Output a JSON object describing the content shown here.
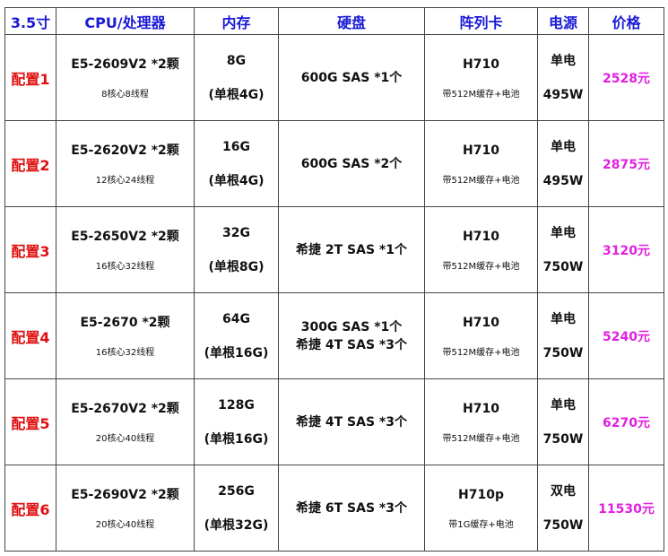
{
  "headers": [
    "3.5寸",
    "CPU/处理器",
    "内存",
    "硬盘",
    "阵列卡",
    "电源",
    "价格"
  ],
  "colors": {
    "header": "#1a1ad6",
    "config": "#e01010",
    "price": "#e020e0"
  },
  "rows": [
    {
      "config": "配置1",
      "cpu": "E5-2609V2 *2颗",
      "cores": "8核心8线程",
      "mem": "8G",
      "mem_detail": "(单根4G)",
      "disk": [
        "600G SAS *1个"
      ],
      "raid": "H710",
      "raid_detail": "带512M缓存+电池",
      "psu": "单电",
      "watt": "495W",
      "price": "2528元"
    },
    {
      "config": "配置2",
      "cpu": "E5-2620V2 *2颗",
      "cores": "12核心24线程",
      "mem": "16G",
      "mem_detail": "(单根4G)",
      "disk": [
        "600G SAS *2个"
      ],
      "raid": "H710",
      "raid_detail": "带512M缓存+电池",
      "psu": "单电",
      "watt": "495W",
      "price": "2875元"
    },
    {
      "config": "配置3",
      "cpu": "E5-2650V2 *2颗",
      "cores": "16核心32线程",
      "mem": "32G",
      "mem_detail": "(单根8G)",
      "disk": [
        "希捷 2T SAS *1个"
      ],
      "raid": "H710",
      "raid_detail": "带512M缓存+电池",
      "psu": "单电",
      "watt": "750W",
      "price": "3120元"
    },
    {
      "config": "配置4",
      "cpu": "E5-2670 *2颗",
      "cores": "16核心32线程",
      "mem": "64G",
      "mem_detail": "(单根16G)",
      "disk": [
        "300G SAS *1个",
        "希捷 4T SAS *3个"
      ],
      "raid": "H710",
      "raid_detail": "带512M缓存+电池",
      "psu": "单电",
      "watt": "750W",
      "price": "5240元"
    },
    {
      "config": "配置5",
      "cpu": "E5-2670V2 *2颗",
      "cores": "20核心40线程",
      "mem": "128G",
      "mem_detail": "(单根16G)",
      "disk": [
        "希捷 4T SAS *3个"
      ],
      "raid": "H710",
      "raid_detail": "带512M缓存+电池",
      "psu": "单电",
      "watt": "750W",
      "price": "6270元"
    },
    {
      "config": "配置6",
      "cpu": "E5-2690V2 *2颗",
      "cores": "20核心40线程",
      "mem": "256G",
      "mem_detail": "(单根32G)",
      "disk": [
        "希捷 6T SAS *3个"
      ],
      "raid": "H710p",
      "raid_detail": "带1G缓存+电池",
      "psu": "双电",
      "watt": "750W",
      "price": "11530元"
    }
  ]
}
